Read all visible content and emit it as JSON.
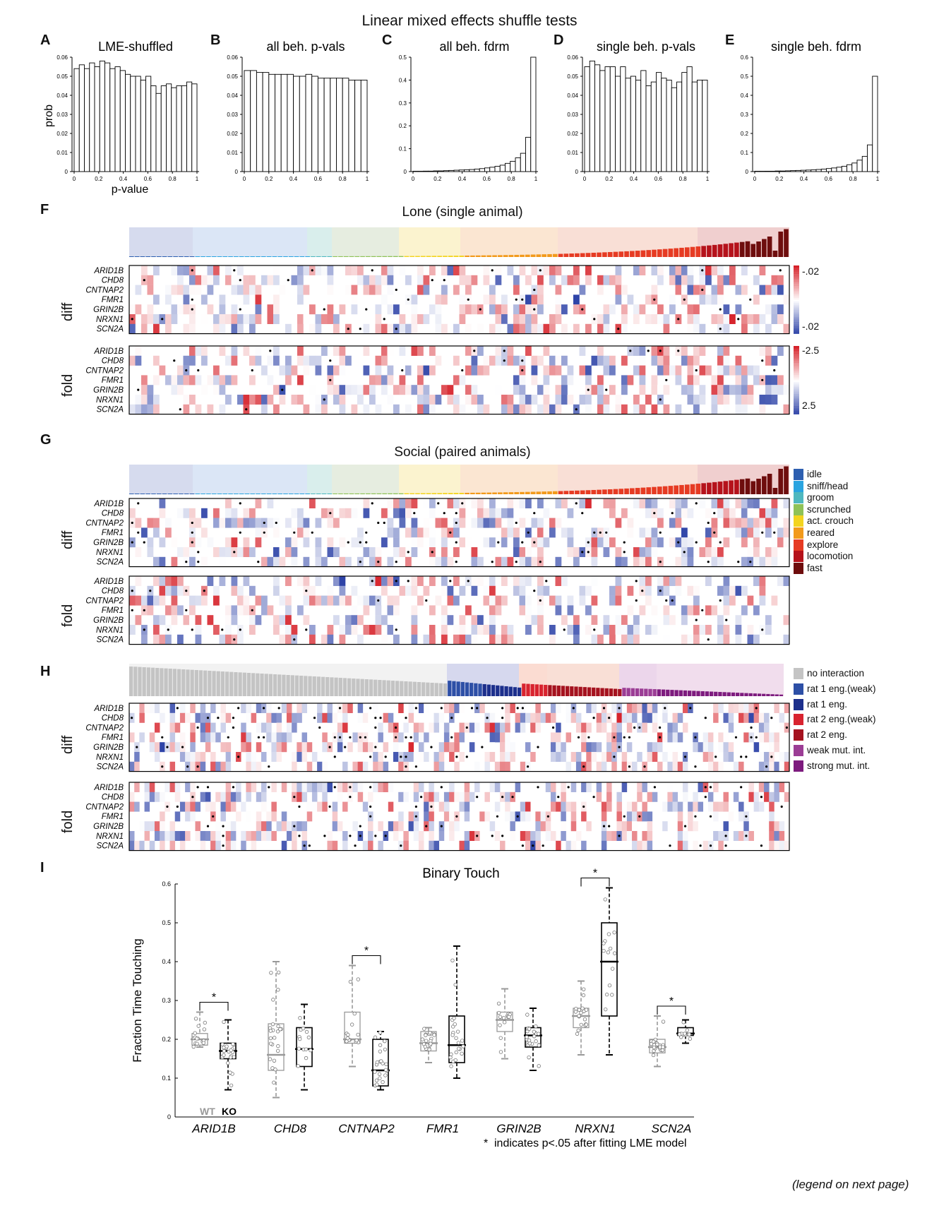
{
  "figure": {
    "main_title": "Linear mixed effects shuffle tests",
    "footnote": "(legend on next page)"
  },
  "panels": {
    "A": "A",
    "B": "B",
    "C": "C",
    "D": "D",
    "E": "E",
    "F": "F",
    "G": "G",
    "H": "H",
    "I": "I"
  },
  "genes": [
    "ARID1B",
    "CHD8",
    "CNTNAP2",
    "FMR1",
    "GRIN2B",
    "NRXN1",
    "SCN2A"
  ],
  "panel_F": {
    "title": "Lone (single animal)",
    "diff_label": "diff",
    "fold_label": "fold",
    "diff_scale": [
      "-.02",
      "-.02"
    ],
    "fold_scale": [
      "-2.5",
      "2.5"
    ]
  },
  "panel_G": {
    "title": "Social (paired animals)",
    "diff_label": "diff",
    "fold_label": "fold"
  },
  "panel_H": {
    "diff_label": "diff",
    "fold_label": "fold"
  },
  "behavior_legend": {
    "items": [
      {
        "label": "idle",
        "color": "#2d5fb0"
      },
      {
        "label": "sniff/head",
        "color": "#2aa4e0"
      },
      {
        "label": "groom",
        "color": "#4fb8bf"
      },
      {
        "label": "scrunched",
        "color": "#8fc257"
      },
      {
        "label": "act. crouch",
        "color": "#f3d41f"
      },
      {
        "label": "reared",
        "color": "#f29a1b"
      },
      {
        "label": "explore",
        "color": "#e63b23"
      },
      {
        "label": "locomotion",
        "color": "#b5121b"
      },
      {
        "label": "fast",
        "color": "#6e0d0d"
      }
    ]
  },
  "interaction_legend": {
    "items": [
      {
        "label": "no interaction",
        "color": "#c4c4c4"
      },
      {
        "label": "rat 1 eng.(weak)",
        "color": "#2d4fa6"
      },
      {
        "label": "rat 1 eng.",
        "color": "#1c2f8c"
      },
      {
        "label": "rat 2 eng.(weak)",
        "color": "#d8232f"
      },
      {
        "label": "rat 2 eng.",
        "color": "#a5121f"
      },
      {
        "label": "weak mut. int.",
        "color": "#9b3d95"
      },
      {
        "label": "strong mut. int.",
        "color": "#7d1b7e"
      }
    ]
  },
  "chart_data": [
    {
      "type": "bar",
      "panel": "A",
      "title": "LME-shuffled",
      "xlabel": "p-value",
      "ylabel": "prob",
      "ylim": [
        0,
        0.06
      ],
      "yticks": [
        "0",
        "0.01",
        "0.02",
        "0.03",
        "0.04",
        "0.05",
        "0.06"
      ],
      "xticks": [
        "0",
        "0.2",
        "0.4",
        "0.6",
        "0.8",
        "1"
      ],
      "values": [
        0.054,
        0.056,
        0.054,
        0.057,
        0.055,
        0.058,
        0.057,
        0.054,
        0.055,
        0.053,
        0.051,
        0.05,
        0.05,
        0.048,
        0.05,
        0.045,
        0.041,
        0.045,
        0.046,
        0.044,
        0.045,
        0.045,
        0.047,
        0.046
      ]
    },
    {
      "type": "bar",
      "panel": "B",
      "title": "all beh. p-vals",
      "ylim": [
        0,
        0.06
      ],
      "yticks": [
        "0",
        "0.01",
        "0.02",
        "0.03",
        "0.04",
        "0.05",
        "0.06"
      ],
      "xticks": [
        "0",
        "0.2",
        "0.4",
        "0.6",
        "0.8",
        "1"
      ],
      "values": [
        0.053,
        0.053,
        0.052,
        0.052,
        0.051,
        0.051,
        0.051,
        0.051,
        0.05,
        0.05,
        0.051,
        0.05,
        0.049,
        0.049,
        0.049,
        0.049,
        0.049,
        0.048,
        0.048,
        0.048
      ]
    },
    {
      "type": "bar",
      "panel": "C",
      "title": "all beh. fdrm",
      "ylim": [
        0,
        0.5
      ],
      "yticks": [
        "0",
        "0.1",
        "0.2",
        "0.3",
        "0.4",
        "0.5"
      ],
      "xticks": [
        "0",
        "0.2",
        "0.4",
        "0.6",
        "0.8",
        "1"
      ],
      "values": [
        0.001,
        0.001,
        0.002,
        0.002,
        0.003,
        0.003,
        0.004,
        0.005,
        0.006,
        0.007,
        0.008,
        0.009,
        0.011,
        0.013,
        0.016,
        0.019,
        0.023,
        0.028,
        0.036,
        0.045,
        0.06,
        0.08,
        0.15,
        0.5
      ]
    },
    {
      "type": "bar",
      "panel": "D",
      "title": "single beh. p-vals",
      "ylim": [
        0,
        0.06
      ],
      "yticks": [
        "0",
        "0.01",
        "0.02",
        "0.03",
        "0.04",
        "0.05",
        "0.06"
      ],
      "xticks": [
        "0",
        "0.2",
        "0.4",
        "0.6",
        "0.8",
        "1"
      ],
      "values": [
        0.055,
        0.058,
        0.056,
        0.053,
        0.055,
        0.055,
        0.05,
        0.055,
        0.049,
        0.05,
        0.048,
        0.053,
        0.045,
        0.047,
        0.052,
        0.049,
        0.048,
        0.044,
        0.047,
        0.052,
        0.055,
        0.047,
        0.048,
        0.048
      ]
    },
    {
      "type": "bar",
      "panel": "E",
      "title": "single beh. fdrm",
      "ylim": [
        0,
        0.6
      ],
      "yticks": [
        "0",
        "0.1",
        "0.2",
        "0.3",
        "0.4",
        "0.5",
        "0.6"
      ],
      "xticks": [
        "0",
        "0.2",
        "0.4",
        "0.6",
        "0.8",
        "1"
      ],
      "values": [
        0.001,
        0.001,
        0.002,
        0.002,
        0.003,
        0.003,
        0.004,
        0.005,
        0.006,
        0.007,
        0.008,
        0.009,
        0.011,
        0.013,
        0.016,
        0.019,
        0.023,
        0.028,
        0.036,
        0.045,
        0.06,
        0.08,
        0.14,
        0.5
      ]
    },
    {
      "type": "box",
      "panel": "I",
      "title": "Binary Touch",
      "ylabel": "Fraction Time Touching",
      "ylim": [
        0,
        0.6
      ],
      "yticks": [
        "0",
        "0.1",
        "0.2",
        "0.3",
        "0.4",
        "0.5",
        "0.6"
      ],
      "categories": [
        "ARID1B",
        "CHD8",
        "CNTNAP2",
        "FMR1",
        "GRIN2B",
        "NRXN1",
        "SCN2A"
      ],
      "series_labels": [
        "WT",
        "KO"
      ],
      "significant": [
        true,
        false,
        true,
        false,
        false,
        true,
        true
      ],
      "sig_marker": "*",
      "note": "indicates p<.05 after fitting LME model",
      "boxes": [
        {
          "gene": "ARID1B",
          "group": "WT",
          "min": 0.18,
          "q1": 0.185,
          "median": 0.2,
          "q3": 0.215,
          "max": 0.27
        },
        {
          "gene": "ARID1B",
          "group": "KO",
          "min": 0.07,
          "q1": 0.15,
          "median": 0.17,
          "q3": 0.19,
          "max": 0.25
        },
        {
          "gene": "CHD8",
          "group": "WT",
          "min": 0.05,
          "q1": 0.12,
          "median": 0.16,
          "q3": 0.24,
          "max": 0.4
        },
        {
          "gene": "CHD8",
          "group": "KO",
          "min": 0.07,
          "q1": 0.13,
          "median": 0.175,
          "q3": 0.23,
          "max": 0.29
        },
        {
          "gene": "CNTNAP2",
          "group": "WT",
          "min": 0.13,
          "q1": 0.19,
          "median": 0.2,
          "q3": 0.27,
          "max": 0.39
        },
        {
          "gene": "CNTNAP2",
          "group": "KO",
          "min": 0.07,
          "q1": 0.08,
          "median": 0.12,
          "q3": 0.2,
          "max": 0.22
        },
        {
          "gene": "FMR1",
          "group": "WT",
          "min": 0.14,
          "q1": 0.17,
          "median": 0.19,
          "q3": 0.22,
          "max": 0.23
        },
        {
          "gene": "FMR1",
          "group": "KO",
          "min": 0.1,
          "q1": 0.14,
          "median": 0.185,
          "q3": 0.26,
          "max": 0.44
        },
        {
          "gene": "GRIN2B",
          "group": "WT",
          "min": 0.15,
          "q1": 0.22,
          "median": 0.25,
          "q3": 0.27,
          "max": 0.33
        },
        {
          "gene": "GRIN2B",
          "group": "KO",
          "min": 0.12,
          "q1": 0.18,
          "median": 0.21,
          "q3": 0.23,
          "max": 0.28
        },
        {
          "gene": "NRXN1",
          "group": "WT",
          "min": 0.16,
          "q1": 0.23,
          "median": 0.26,
          "q3": 0.28,
          "max": 0.35
        },
        {
          "gene": "NRXN1",
          "group": "KO",
          "min": 0.16,
          "q1": 0.26,
          "median": 0.4,
          "q3": 0.5,
          "max": 0.59
        },
        {
          "gene": "SCN2A",
          "group": "WT",
          "min": 0.13,
          "q1": 0.165,
          "median": 0.18,
          "q3": 0.2,
          "max": 0.26
        },
        {
          "gene": "SCN2A",
          "group": "KO",
          "min": 0.19,
          "q1": 0.21,
          "median": 0.215,
          "q3": 0.23,
          "max": 0.25
        }
      ]
    }
  ]
}
